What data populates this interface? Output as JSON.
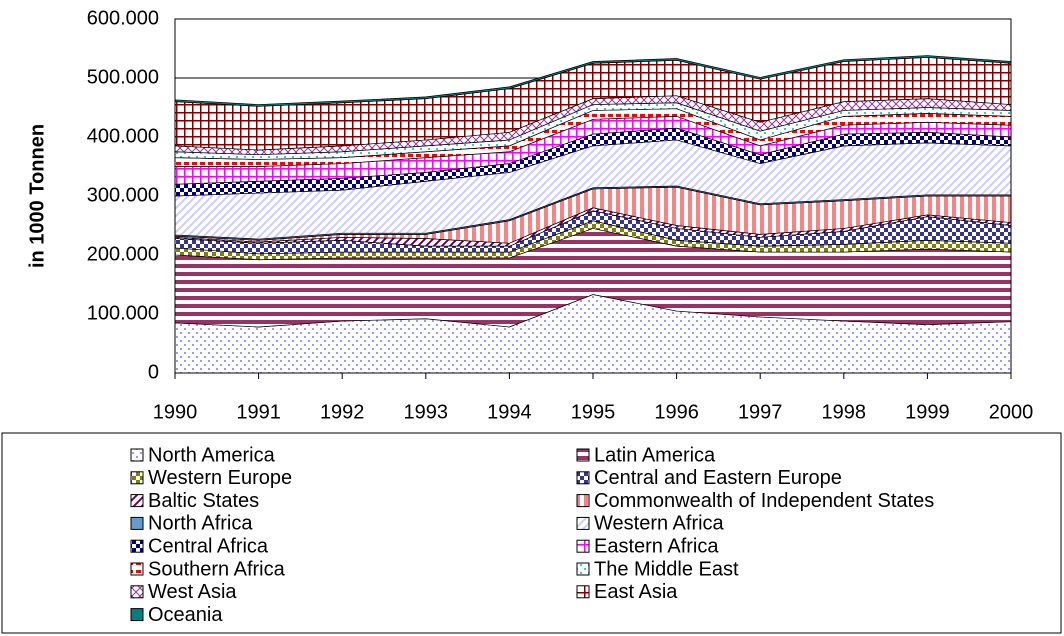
{
  "chart_data": {
    "type": "stacked_area",
    "y_label": "in 1000 Tonnen",
    "x": [
      1990,
      1991,
      1992,
      1993,
      1994,
      1995,
      1996,
      1997,
      1998,
      1999,
      2000
    ],
    "xlim": [
      1990,
      2000
    ],
    "xticks": [
      1990,
      1991,
      1992,
      1993,
      1994,
      1995,
      1996,
      1997,
      1998,
      1999,
      2000
    ],
    "ylim": [
      0,
      600000
    ],
    "yticks": [
      0,
      {
        "value": 100000,
        "label": "100.000"
      },
      {
        "value": 200000,
        "label": "200.000"
      },
      {
        "value": 300000,
        "label": "300.000"
      },
      {
        "value": 400000,
        "label": "400.000"
      },
      {
        "value": 500000,
        "label": "500.000"
      },
      {
        "value": 600000,
        "label": "600.000"
      }
    ],
    "grid": true,
    "legend": "bottom",
    "series": [
      {
        "name": "North America",
        "color": "#9999ff",
        "values": [
          85000,
          78000,
          88000,
          92000,
          78000,
          133000,
          105000,
          95000,
          88000,
          82000,
          87000
        ]
      },
      {
        "name": "Latin America",
        "color": "#993366",
        "values": [
          115000,
          114000,
          107000,
          103000,
          117000,
          112000,
          110000,
          110000,
          117000,
          128000,
          118000
        ]
      },
      {
        "name": "Western Europe",
        "color": "#808000",
        "values": [
          12000,
          10000,
          10000,
          10000,
          10000,
          13000,
          10000,
          10000,
          13000,
          15000,
          15000
        ]
      },
      {
        "name": "Central and Eastern Europe",
        "color": "#333399",
        "values": [
          16000,
          18000,
          20000,
          10000,
          10000,
          17000,
          20000,
          15000,
          22000,
          40000,
          30000
        ]
      },
      {
        "name": "Baltic States",
        "color": "#660066",
        "values": [
          2000,
          2000,
          5000,
          13000,
          5000,
          5000,
          5000,
          5000,
          5000,
          3000,
          5000
        ]
      },
      {
        "name": "Commonwealth of Independent States",
        "color": "#ff8080",
        "values": [
          2000,
          3000,
          5000,
          7000,
          38000,
          32000,
          65000,
          50000,
          47000,
          32000,
          45000
        ]
      },
      {
        "name": "North Africa",
        "color": "#6699cc",
        "values": [
          2000,
          2000,
          2000,
          2000,
          2000,
          2000,
          2000,
          2000,
          2000,
          2000,
          2000
        ]
      },
      {
        "name": "Western Africa",
        "color": "#ccccff",
        "values": [
          66000,
          78000,
          73000,
          88000,
          80000,
          71000,
          78000,
          68000,
          91000,
          88000,
          83000
        ]
      },
      {
        "name": "Central Africa",
        "color": "#000080",
        "values": [
          20000,
          20000,
          20000,
          15000,
          15000,
          20000,
          20000,
          15000,
          20000,
          18000,
          15000
        ]
      },
      {
        "name": "Eastern Africa",
        "color": "#ff00ff",
        "values": [
          30000,
          25000,
          25000,
          25000,
          20000,
          25000,
          20000,
          15000,
          15000,
          17000,
          20000
        ]
      },
      {
        "name": "Southern Africa",
        "color": "#ff0000",
        "values": [
          15000,
          12000,
          10000,
          10000,
          10000,
          15000,
          13000,
          10000,
          15000,
          15000,
          15000
        ]
      },
      {
        "name": "The Middle East",
        "color": "#33cccc",
        "values": [
          10000,
          8000,
          10000,
          10000,
          10000,
          10000,
          10000,
          15000,
          10000,
          10000,
          10000
        ]
      },
      {
        "name": "West Asia",
        "color": "#993399",
        "values": [
          10000,
          8000,
          10000,
          10000,
          13000,
          10000,
          12000,
          15000,
          15000,
          15000,
          10000
        ]
      },
      {
        "name": "East Asia",
        "color": "#800000",
        "values": [
          75000,
          74000,
          73000,
          70000,
          74000,
          60000,
          60000,
          73000,
          68000,
          70000,
          70000
        ]
      },
      {
        "name": "Oceania",
        "color": "#008080",
        "values": [
          3000,
          3000,
          3000,
          3000,
          3000,
          3000,
          3000,
          3000,
          3000,
          3000,
          3000
        ]
      }
    ]
  }
}
